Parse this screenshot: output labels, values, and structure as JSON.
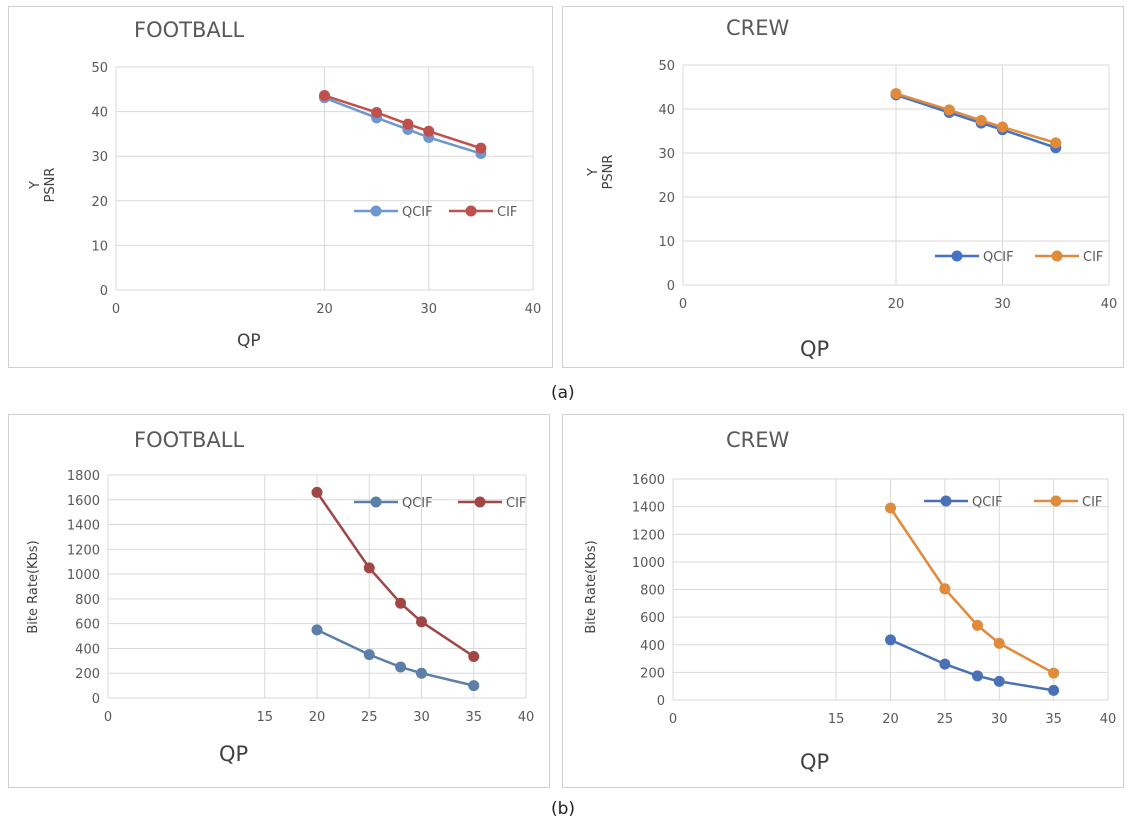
{
  "captions": {
    "a": "(a)",
    "b": "(b)"
  },
  "chart_data": [
    {
      "type": "line",
      "title": "FOOTBALL",
      "xlabel": "QP",
      "ylabel": [
        "Y",
        "PSNR"
      ],
      "xlim": [
        0,
        40
      ],
      "xticks": [
        0,
        20,
        30,
        40
      ],
      "ylim": [
        0,
        50
      ],
      "yticks": [
        0,
        10,
        20,
        30,
        40,
        50
      ],
      "grid": true,
      "legend": "right",
      "series": [
        {
          "name": "QCIF",
          "color": "#6f97cf",
          "x": [
            20,
            25,
            28,
            30,
            35
          ],
          "y": [
            43.1,
            38.6,
            36.0,
            34.2,
            30.6
          ]
        },
        {
          "name": "CIF",
          "color": "#c0504d",
          "x": [
            20,
            25,
            28,
            30,
            35
          ],
          "y": [
            43.6,
            39.8,
            37.2,
            35.6,
            31.8
          ]
        }
      ]
    },
    {
      "type": "line",
      "title": "CREW",
      "xlabel": "QP",
      "ylabel": [
        "Y",
        "PSNR"
      ],
      "xlim": [
        0,
        40
      ],
      "xticks": [
        0,
        20,
        30,
        40
      ],
      "ylim": [
        0,
        50
      ],
      "yticks": [
        0,
        10,
        20,
        30,
        40,
        50
      ],
      "grid": true,
      "legend": "bottom-right",
      "series": [
        {
          "name": "QCIF",
          "color": "#4472c4",
          "x": [
            20,
            25,
            28,
            30,
            35
          ],
          "y": [
            43.2,
            39.2,
            36.8,
            35.3,
            31.2
          ]
        },
        {
          "name": "CIF",
          "color": "#e08a3c",
          "x": [
            20,
            25,
            28,
            30,
            35
          ],
          "y": [
            43.5,
            39.8,
            37.4,
            35.9,
            32.3
          ]
        }
      ]
    },
    {
      "type": "line",
      "title": "FOOTBALL",
      "xlabel": "QP",
      "ylabel": [
        "Bite Rate(Kbs)"
      ],
      "xlim": [
        0,
        40
      ],
      "xticks": [
        0,
        15,
        20,
        25,
        30,
        35,
        40
      ],
      "ylim": [
        0,
        1800
      ],
      "yticks": [
        0,
        200,
        400,
        600,
        800,
        1000,
        1200,
        1400,
        1600,
        1800
      ],
      "grid": true,
      "legend": "top-right",
      "series": [
        {
          "name": "QCIF",
          "color": "#5b7fa8",
          "x": [
            20,
            25,
            28,
            30,
            35
          ],
          "y": [
            550,
            350,
            250,
            200,
            100
          ]
        },
        {
          "name": "CIF",
          "color": "#a04745",
          "x": [
            20,
            25,
            28,
            30,
            35
          ],
          "y": [
            1660,
            1050,
            765,
            615,
            335
          ]
        }
      ]
    },
    {
      "type": "line",
      "title": "CREW",
      "xlabel": "QP",
      "ylabel": [
        "Bite Rate(Kbs)"
      ],
      "xlim": [
        0,
        40
      ],
      "xticks": [
        0,
        15,
        20,
        25,
        30,
        35,
        40
      ],
      "ylim": [
        0,
        1600
      ],
      "yticks": [
        0,
        200,
        400,
        600,
        800,
        1000,
        1200,
        1400,
        1600
      ],
      "grid": true,
      "legend": "top-right",
      "series": [
        {
          "name": "QCIF",
          "color": "#4a70b5",
          "x": [
            20,
            25,
            28,
            30,
            35
          ],
          "y": [
            435,
            260,
            175,
            135,
            70
          ]
        },
        {
          "name": "CIF",
          "color": "#e08a3c",
          "x": [
            20,
            25,
            28,
            30,
            35
          ],
          "y": [
            1390,
            805,
            540,
            410,
            195
          ]
        }
      ]
    }
  ]
}
